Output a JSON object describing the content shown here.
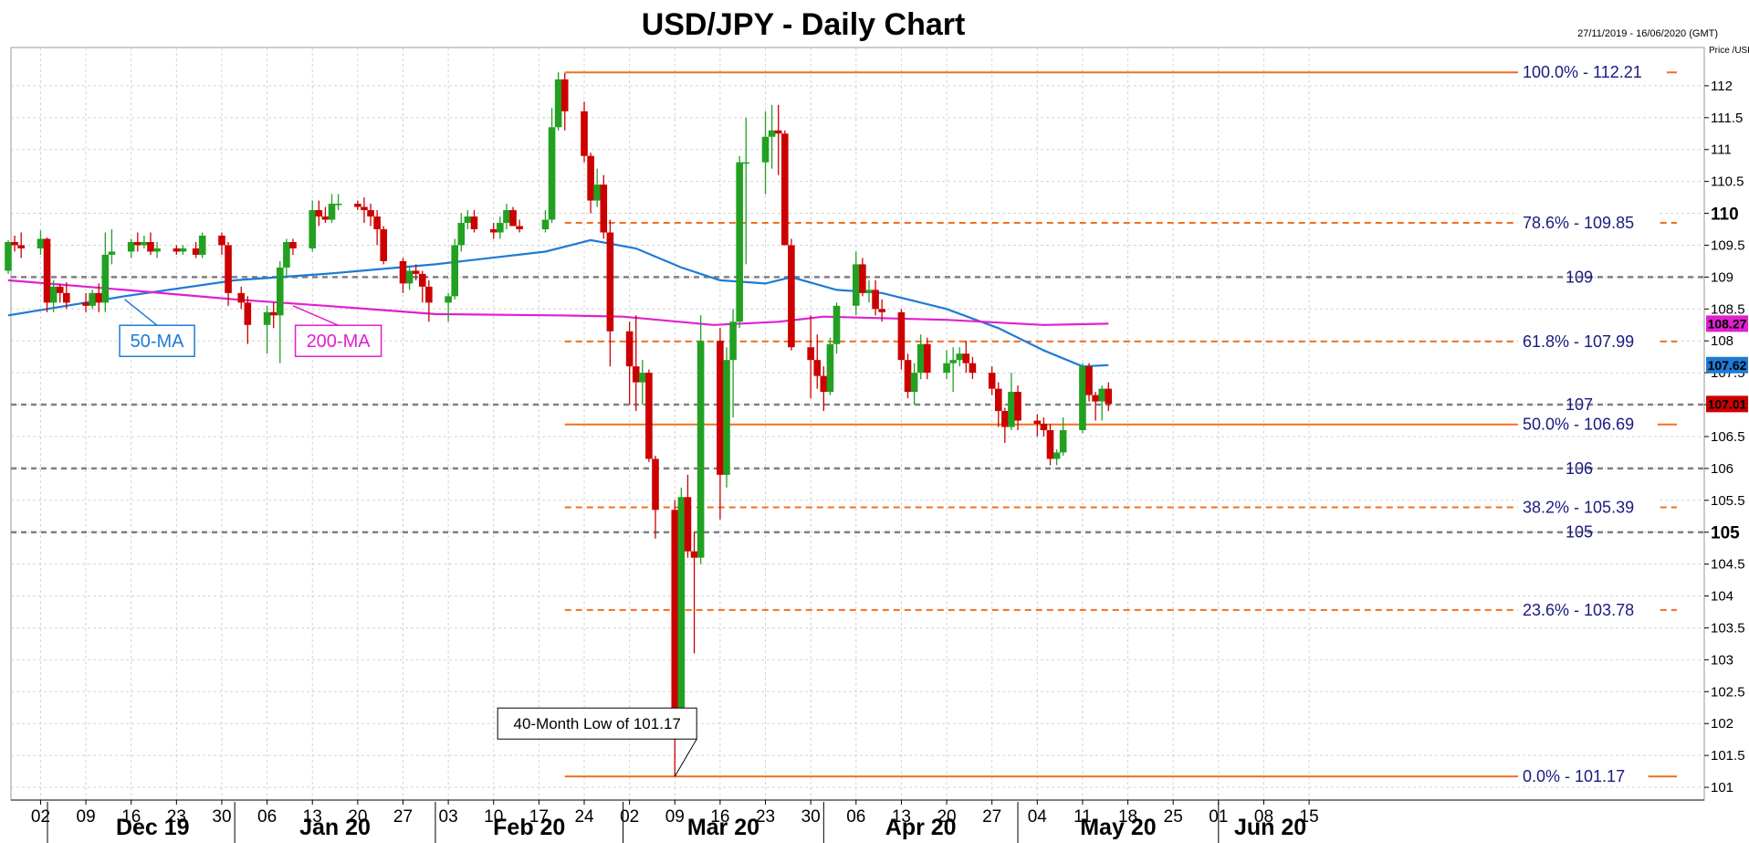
{
  "chart_data": {
    "type": "candlestick",
    "title": "USD/JPY - Daily Chart",
    "date_range": "27/11/2019 - 16/06/2020 (GMT)",
    "ylabel": "Price /USD",
    "ylim": [
      100.8,
      112.6
    ],
    "y_ticks": [
      101,
      101.5,
      102,
      102.5,
      103,
      103.5,
      104,
      104.5,
      105,
      105.5,
      106,
      106.5,
      107,
      107.5,
      108,
      108.5,
      109,
      109.5,
      110,
      110.5,
      111,
      111.5,
      112
    ],
    "y_ticks_major": [
      105,
      110
    ],
    "x_day_ticks": [
      {
        "date": "2019-12-02",
        "label": "02"
      },
      {
        "date": "2019-12-09",
        "label": "09"
      },
      {
        "date": "2019-12-16",
        "label": "16"
      },
      {
        "date": "2019-12-23",
        "label": "23"
      },
      {
        "date": "2019-12-30",
        "label": "30"
      },
      {
        "date": "2020-01-06",
        "label": "06"
      },
      {
        "date": "2020-01-13",
        "label": "13"
      },
      {
        "date": "2020-01-20",
        "label": "20"
      },
      {
        "date": "2020-01-27",
        "label": "27"
      },
      {
        "date": "2020-02-03",
        "label": "03"
      },
      {
        "date": "2020-02-10",
        "label": "10"
      },
      {
        "date": "2020-02-17",
        "label": "17"
      },
      {
        "date": "2020-02-24",
        "label": "24"
      },
      {
        "date": "2020-03-02",
        "label": "02"
      },
      {
        "date": "2020-03-09",
        "label": "09"
      },
      {
        "date": "2020-03-16",
        "label": "16"
      },
      {
        "date": "2020-03-23",
        "label": "23"
      },
      {
        "date": "2020-03-30",
        "label": "30"
      },
      {
        "date": "2020-04-06",
        "label": "06"
      },
      {
        "date": "2020-04-13",
        "label": "13"
      },
      {
        "date": "2020-04-20",
        "label": "20"
      },
      {
        "date": "2020-04-27",
        "label": "27"
      },
      {
        "date": "2020-05-04",
        "label": "04"
      },
      {
        "date": "2020-05-11",
        "label": "11"
      },
      {
        "date": "2020-05-18",
        "label": "18"
      },
      {
        "date": "2020-05-25",
        "label": "25"
      },
      {
        "date": "2020-06-01",
        "label": "01"
      },
      {
        "date": "2020-06-08",
        "label": "08"
      },
      {
        "date": "2020-06-15",
        "label": "15"
      }
    ],
    "x_months": [
      {
        "label": "Dec 19",
        "start": "2019-12-01",
        "end": "2019-12-31"
      },
      {
        "label": "Jan 20",
        "start": "2020-01-01",
        "end": "2020-01-31"
      },
      {
        "label": "Feb 20",
        "start": "2020-02-01",
        "end": "2020-02-29"
      },
      {
        "label": "Mar 20",
        "start": "2020-03-01",
        "end": "2020-03-31"
      },
      {
        "label": "Apr 20",
        "start": "2020-04-01",
        "end": "2020-04-30"
      },
      {
        "label": "May 20",
        "start": "2020-05-01",
        "end": "2020-05-31"
      },
      {
        "label": "Jun 20",
        "start": "2020-06-01",
        "end": "2020-06-16"
      }
    ],
    "candles": [
      [
        "2019-11-27",
        109.1,
        109.58,
        109.05,
        109.55
      ],
      [
        "2019-11-28",
        109.55,
        109.65,
        109.4,
        109.5
      ],
      [
        "2019-11-29",
        109.5,
        109.7,
        109.3,
        109.45
      ],
      [
        "2019-12-02",
        109.45,
        109.73,
        109.35,
        109.6
      ],
      [
        "2019-12-03",
        109.6,
        109.62,
        108.45,
        108.6
      ],
      [
        "2019-12-04",
        108.6,
        108.95,
        108.45,
        108.85
      ],
      [
        "2019-12-05",
        108.85,
        108.9,
        108.6,
        108.75
      ],
      [
        "2019-12-06",
        108.75,
        108.92,
        108.5,
        108.6
      ],
      [
        "2019-12-09",
        108.6,
        108.75,
        108.45,
        108.55
      ],
      [
        "2019-12-10",
        108.55,
        108.8,
        108.5,
        108.75
      ],
      [
        "2019-12-11",
        108.75,
        108.9,
        108.45,
        108.6
      ],
      [
        "2019-12-12",
        108.6,
        109.7,
        108.45,
        109.35
      ],
      [
        "2019-12-13",
        109.35,
        109.75,
        109.2,
        109.4
      ],
      [
        "2019-12-16",
        109.4,
        109.6,
        109.3,
        109.55
      ],
      [
        "2019-12-17",
        109.55,
        109.7,
        109.4,
        109.5
      ],
      [
        "2019-12-18",
        109.5,
        109.65,
        109.45,
        109.55
      ],
      [
        "2019-12-19",
        109.55,
        109.7,
        109.35,
        109.4
      ],
      [
        "2019-12-20",
        109.4,
        109.55,
        109.3,
        109.45
      ],
      [
        "2019-12-23",
        109.45,
        109.5,
        109.35,
        109.4
      ],
      [
        "2019-12-24",
        109.4,
        109.5,
        109.35,
        109.45
      ],
      [
        "2019-12-26",
        109.45,
        109.55,
        109.3,
        109.35
      ],
      [
        "2019-12-27",
        109.35,
        109.7,
        109.3,
        109.65
      ],
      [
        "2019-12-30",
        109.65,
        109.7,
        109.35,
        109.5
      ],
      [
        "2019-12-31",
        109.5,
        109.55,
        108.55,
        108.75
      ],
      [
        "2020-01-02",
        108.75,
        108.85,
        108.5,
        108.6
      ],
      [
        "2020-01-03",
        108.6,
        108.7,
        107.95,
        108.25
      ],
      [
        "2020-01-06",
        108.25,
        108.55,
        107.8,
        108.45
      ],
      [
        "2020-01-07",
        108.45,
        108.6,
        108.2,
        108.4
      ],
      [
        "2020-01-08",
        108.4,
        109.25,
        107.65,
        109.15
      ],
      [
        "2020-01-09",
        109.15,
        109.6,
        109.0,
        109.55
      ],
      [
        "2020-01-10",
        109.55,
        109.6,
        109.35,
        109.45
      ],
      [
        "2020-01-13",
        109.45,
        110.2,
        109.4,
        110.05
      ],
      [
        "2020-01-14",
        110.05,
        110.2,
        109.8,
        109.95
      ],
      [
        "2020-01-15",
        109.95,
        110.1,
        109.85,
        109.9
      ],
      [
        "2020-01-16",
        109.9,
        110.3,
        109.85,
        110.15
      ],
      [
        "2020-01-17",
        110.15,
        110.3,
        110.05,
        110.15
      ],
      [
        "2020-01-20",
        110.15,
        110.2,
        110.05,
        110.1
      ],
      [
        "2020-01-21",
        110.1,
        110.25,
        109.85,
        110.05
      ],
      [
        "2020-01-22",
        110.05,
        110.15,
        109.8,
        109.95
      ],
      [
        "2020-01-23",
        109.95,
        110.05,
        109.5,
        109.75
      ],
      [
        "2020-01-24",
        109.75,
        109.8,
        109.2,
        109.25
      ],
      [
        "2020-01-27",
        109.25,
        109.3,
        108.75,
        108.9
      ],
      [
        "2020-01-28",
        108.9,
        109.15,
        108.8,
        109.1
      ],
      [
        "2020-01-29",
        109.1,
        109.2,
        108.95,
        109.05
      ],
      [
        "2020-01-30",
        109.05,
        109.1,
        108.6,
        108.85
      ],
      [
        "2020-01-31",
        108.85,
        108.95,
        108.3,
        108.6
      ],
      [
        "2020-02-03",
        108.6,
        108.75,
        108.3,
        108.7
      ],
      [
        "2020-02-04",
        108.7,
        109.6,
        108.65,
        109.5
      ],
      [
        "2020-02-05",
        109.5,
        110.0,
        109.4,
        109.85
      ],
      [
        "2020-02-06",
        109.85,
        110.05,
        109.75,
        109.95
      ],
      [
        "2020-02-07",
        109.95,
        110.05,
        109.7,
        109.75
      ],
      [
        "2020-02-10",
        109.75,
        109.85,
        109.6,
        109.7
      ],
      [
        "2020-02-11",
        109.7,
        109.95,
        109.6,
        109.85
      ],
      [
        "2020-02-12",
        109.85,
        110.15,
        109.75,
        110.05
      ],
      [
        "2020-02-13",
        110.05,
        110.1,
        109.85,
        109.8
      ],
      [
        "2020-02-14",
        109.8,
        109.9,
        109.7,
        109.75
      ],
      [
        "2020-02-18",
        109.75,
        110.05,
        109.7,
        109.9
      ],
      [
        "2020-02-19",
        109.9,
        111.65,
        109.85,
        111.35
      ],
      [
        "2020-02-20",
        111.35,
        112.21,
        111.3,
        112.1
      ],
      [
        "2020-02-21",
        112.1,
        112.2,
        111.3,
        111.6
      ],
      [
        "2020-02-24",
        111.6,
        111.75,
        110.8,
        110.9
      ],
      [
        "2020-02-25",
        110.9,
        110.95,
        110.0,
        110.2
      ],
      [
        "2020-02-26",
        110.2,
        110.7,
        110.1,
        110.45
      ],
      [
        "2020-02-27",
        110.45,
        110.6,
        109.6,
        109.7
      ],
      [
        "2020-02-28",
        109.7,
        109.9,
        107.6,
        108.15
      ],
      [
        "2020-03-02",
        108.15,
        108.3,
        107.0,
        107.6
      ],
      [
        "2020-03-03",
        107.6,
        108.4,
        106.9,
        107.35
      ],
      [
        "2020-03-04",
        107.35,
        107.7,
        107.0,
        107.5
      ],
      [
        "2020-03-05",
        107.5,
        107.55,
        106.1,
        106.15
      ],
      [
        "2020-03-06",
        106.15,
        106.2,
        104.9,
        105.35
      ],
      [
        "2020-03-09",
        105.35,
        105.5,
        101.17,
        102.2
      ],
      [
        "2020-03-10",
        102.2,
        105.7,
        101.95,
        105.55
      ],
      [
        "2020-03-11",
        105.55,
        105.9,
        104.6,
        104.7
      ],
      [
        "2020-03-12",
        104.7,
        105.0,
        103.1,
        104.6
      ],
      [
        "2020-03-13",
        104.6,
        108.4,
        104.5,
        108.0
      ],
      [
        "2020-03-16",
        108.0,
        108.2,
        105.2,
        105.9
      ],
      [
        "2020-03-17",
        105.9,
        107.9,
        105.7,
        107.7
      ],
      [
        "2020-03-18",
        107.7,
        108.5,
        106.8,
        108.3
      ],
      [
        "2020-03-19",
        108.3,
        110.9,
        108.2,
        110.8
      ],
      [
        "2020-03-20",
        110.8,
        111.5,
        109.2,
        110.8
      ],
      [
        "2020-03-23",
        110.8,
        111.6,
        110.3,
        111.2
      ],
      [
        "2020-03-24",
        111.2,
        111.7,
        110.7,
        111.3
      ],
      [
        "2020-03-25",
        111.3,
        111.7,
        110.6,
        111.25
      ],
      [
        "2020-03-26",
        111.25,
        111.3,
        109.5,
        109.5
      ],
      [
        "2020-03-27",
        109.5,
        109.6,
        107.85,
        107.9
      ],
      [
        "2020-03-30",
        107.9,
        108.4,
        107.1,
        107.7
      ],
      [
        "2020-03-31",
        107.7,
        108.1,
        107.25,
        107.45
      ],
      [
        "2020-04-01",
        107.45,
        107.6,
        106.9,
        107.2
      ],
      [
        "2020-04-02",
        107.2,
        108.05,
        107.15,
        107.95
      ],
      [
        "2020-04-03",
        107.95,
        108.6,
        107.8,
        108.55
      ],
      [
        "2020-04-06",
        108.55,
        109.4,
        108.4,
        109.2
      ],
      [
        "2020-04-07",
        109.2,
        109.3,
        108.7,
        108.75
      ],
      [
        "2020-04-08",
        108.75,
        108.95,
        108.6,
        108.8
      ],
      [
        "2020-04-09",
        108.8,
        108.95,
        108.4,
        108.5
      ],
      [
        "2020-04-10",
        108.5,
        108.65,
        108.3,
        108.45
      ],
      [
        "2020-04-13",
        108.45,
        108.5,
        107.55,
        107.7
      ],
      [
        "2020-04-14",
        107.7,
        107.8,
        107.1,
        107.2
      ],
      [
        "2020-04-15",
        107.2,
        107.65,
        107.0,
        107.5
      ],
      [
        "2020-04-16",
        107.5,
        108.1,
        107.4,
        107.95
      ],
      [
        "2020-04-17",
        107.95,
        108.05,
        107.4,
        107.5
      ],
      [
        "2020-04-20",
        107.5,
        107.85,
        107.4,
        107.65
      ],
      [
        "2020-04-21",
        107.65,
        107.9,
        107.2,
        107.7
      ],
      [
        "2020-04-22",
        107.7,
        107.9,
        107.6,
        107.8
      ],
      [
        "2020-04-23",
        107.8,
        108.0,
        107.5,
        107.65
      ],
      [
        "2020-04-24",
        107.65,
        107.75,
        107.4,
        107.5
      ],
      [
        "2020-04-27",
        107.5,
        107.6,
        107.15,
        107.25
      ],
      [
        "2020-04-28",
        107.25,
        107.35,
        106.65,
        106.9
      ],
      [
        "2020-04-29",
        106.9,
        106.95,
        106.4,
        106.65
      ],
      [
        "2020-04-30",
        106.65,
        107.5,
        106.6,
        107.2
      ],
      [
        "2020-05-01",
        107.2,
        107.3,
        106.6,
        106.75
      ],
      [
        "2020-05-04",
        106.75,
        106.85,
        106.5,
        106.7
      ],
      [
        "2020-05-05",
        106.7,
        106.8,
        106.5,
        106.6
      ],
      [
        "2020-05-06",
        106.6,
        106.7,
        106.05,
        106.15
      ],
      [
        "2020-05-07",
        106.15,
        106.3,
        106.05,
        106.25
      ],
      [
        "2020-05-08",
        106.25,
        106.8,
        106.2,
        106.6
      ],
      [
        "2020-05-11",
        106.6,
        107.65,
        106.55,
        107.6
      ],
      [
        "2020-05-12",
        107.6,
        107.65,
        107.05,
        107.15
      ],
      [
        "2020-05-13",
        107.15,
        107.2,
        106.75,
        107.05
      ],
      [
        "2020-05-14",
        107.05,
        107.3,
        106.75,
        107.25
      ],
      [
        "2020-05-15",
        107.25,
        107.35,
        106.9,
        107.01
      ]
    ],
    "moving_averages": [
      {
        "name": "50-MA",
        "color": "#1e7ad6",
        "label_date": "2019-12-20",
        "label_price": 108.0,
        "anchor_date": "2019-12-15",
        "anchor_price": 108.65,
        "points": [
          [
            "2019-11-27",
            108.4
          ],
          [
            "2019-12-15",
            108.7
          ],
          [
            "2020-01-01",
            108.95
          ],
          [
            "2020-01-15",
            109.05
          ],
          [
            "2020-02-01",
            109.2
          ],
          [
            "2020-02-18",
            109.4
          ],
          [
            "2020-02-25",
            109.58
          ],
          [
            "2020-03-03",
            109.45
          ],
          [
            "2020-03-10",
            109.15
          ],
          [
            "2020-03-16",
            108.95
          ],
          [
            "2020-03-23",
            108.9
          ],
          [
            "2020-03-27",
            109.0
          ],
          [
            "2020-04-03",
            108.8
          ],
          [
            "2020-04-10",
            108.75
          ],
          [
            "2020-04-20",
            108.5
          ],
          [
            "2020-04-28",
            108.2
          ],
          [
            "2020-05-05",
            107.85
          ],
          [
            "2020-05-11",
            107.6
          ],
          [
            "2020-05-15",
            107.62
          ]
        ]
      },
      {
        "name": "200-MA",
        "color": "#e020d0",
        "label_date": "2020-01-17",
        "label_price": 108.0,
        "anchor_date": "2020-01-10",
        "anchor_price": 108.55,
        "points": [
          [
            "2019-11-27",
            108.95
          ],
          [
            "2019-12-15",
            108.8
          ],
          [
            "2020-01-01",
            108.65
          ],
          [
            "2020-01-15",
            108.55
          ],
          [
            "2020-02-01",
            108.42
          ],
          [
            "2020-02-20",
            108.4
          ],
          [
            "2020-03-01",
            108.38
          ],
          [
            "2020-03-15",
            108.25
          ],
          [
            "2020-03-25",
            108.3
          ],
          [
            "2020-04-01",
            108.38
          ],
          [
            "2020-04-20",
            108.33
          ],
          [
            "2020-05-05",
            108.25
          ],
          [
            "2020-05-15",
            108.27
          ]
        ]
      }
    ],
    "fib_levels": [
      {
        "label": "100.0%",
        "value": "112.21",
        "price": 112.21,
        "style": "solid"
      },
      {
        "label": "78.6%",
        "value": "109.85",
        "price": 109.85,
        "style": "dashed"
      },
      {
        "label": "61.8%",
        "value": "107.99",
        "price": 107.99,
        "style": "dashed"
      },
      {
        "label": "50.0%",
        "value": "106.69",
        "price": 106.69,
        "style": "solid"
      },
      {
        "label": "38.2%",
        "value": "105.39",
        "price": 105.39,
        "style": "dashed"
      },
      {
        "label": "23.6%",
        "value": "103.78",
        "price": 103.78,
        "style": "dashed"
      },
      {
        "label": "0.0%",
        "value": "101.17",
        "price": 101.17,
        "style": "solid"
      }
    ],
    "fib_color": "#f07020",
    "fib_start": "2020-02-21",
    "horizontal_levels": [
      {
        "price": 109,
        "label": "109"
      },
      {
        "price": 107,
        "label": "107"
      },
      {
        "price": 106,
        "label": "106"
      },
      {
        "price": 105,
        "label": "105"
      }
    ],
    "price_tags": [
      {
        "value": "108.27",
        "price": 108.27,
        "color": "#e020d0"
      },
      {
        "value": "107.62",
        "price": 107.62,
        "color": "#1e7ad6"
      },
      {
        "value": "107.01",
        "price": 107.01,
        "color": "#cc0000"
      }
    ],
    "annotations": [
      {
        "text": "40-Month Low of 101.17",
        "date": "2020-02-26",
        "price": 102.0,
        "target_date": "2020-03-09",
        "target_price": 101.17
      }
    ],
    "colors": {
      "up": "#22a022",
      "down": "#cc0000",
      "grid": "#d4d4d4",
      "level": "#808080"
    },
    "grid": true
  }
}
